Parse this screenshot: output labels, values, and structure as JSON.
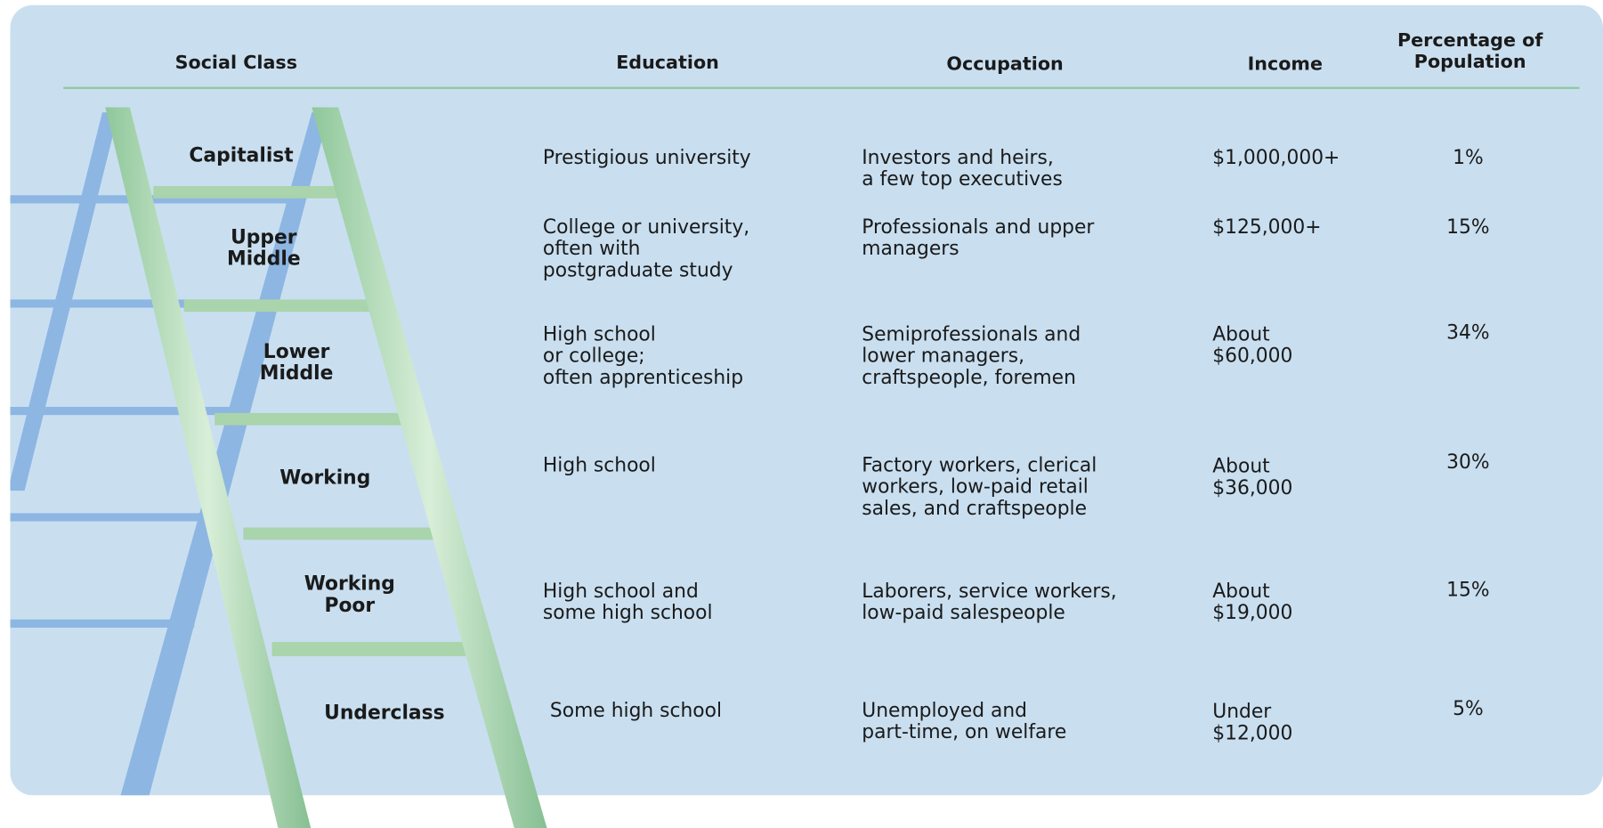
{
  "header": {
    "columns": [
      "Social Class",
      "Education",
      "Occupation",
      "Income",
      [
        "Percentage of",
        "Population"
      ]
    ]
  },
  "table": {
    "rows": [
      {
        "class": [
          "Capitalist"
        ],
        "education": [
          "Prestigious university"
        ],
        "occupation": [
          "Investors and heirs,",
          "a few top executives"
        ],
        "income": [
          "$1,000,000+"
        ],
        "percentage": "1%"
      },
      {
        "class": [
          "Upper",
          "Middle"
        ],
        "education": [
          "College or university,",
          "often with",
          "postgraduate study"
        ],
        "occupation": [
          "Professionals and upper",
          "managers"
        ],
        "income": [
          "$125,000+"
        ],
        "percentage": "15%"
      },
      {
        "class": [
          "Lower",
          "Middle"
        ],
        "education": [
          "High school",
          "or college;",
          "often apprenticeship"
        ],
        "occupation": [
          "Semiprofessionals and",
          "lower managers,",
          "craftspeople, foremen"
        ],
        "income": [
          "About",
          "$60,000"
        ],
        "percentage": "34%"
      },
      {
        "class": [
          "Working"
        ],
        "education": [
          "High school"
        ],
        "occupation": [
          "Factory workers, clerical",
          "workers, low-paid retail",
          "sales, and craftspeople"
        ],
        "income": [
          "About",
          "$36,000"
        ],
        "percentage": "30%"
      },
      {
        "class": [
          "Working",
          "Poor"
        ],
        "education": [
          "High school and",
          "some high school"
        ],
        "occupation": [
          "Laborers, service workers,",
          "low-paid salespeople"
        ],
        "income": [
          "About",
          "$19,000"
        ],
        "percentage": "15%"
      },
      {
        "class": [
          "Underclass"
        ],
        "education": [
          "Some high school"
        ],
        "occupation": [
          "Unemployed and",
          "part-time, on welfare"
        ],
        "income": [
          "Under",
          "$12,000"
        ],
        "percentage": "5%"
      }
    ]
  }
}
